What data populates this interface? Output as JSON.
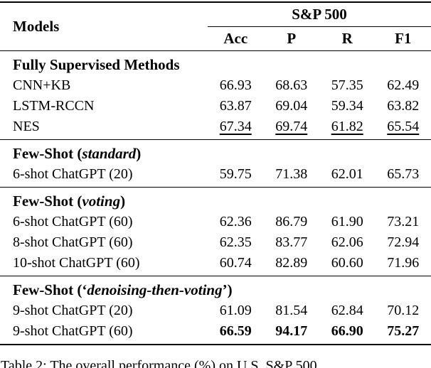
{
  "colors": {
    "background": "#ffffff",
    "text": "#000000",
    "rule": "#000000"
  },
  "table": {
    "models_header": "Models",
    "group_header": "S&P 500",
    "sub_headers": [
      "Acc",
      "P",
      "R",
      "F1"
    ],
    "sections": [
      {
        "title": {
          "prefix": "Fully Supervised Methods",
          "italic": "",
          "suffix": ""
        },
        "rows": [
          {
            "model": "CNN+KB",
            "values": [
              "66.93",
              "68.63",
              "57.35",
              "62.49"
            ]
          },
          {
            "model": "LSTM-RCCN",
            "values": [
              "63.87",
              "69.04",
              "59.34",
              "63.82"
            ]
          },
          {
            "model": "NES",
            "values": [
              "67.34",
              "69.74",
              "61.82",
              "65.54"
            ],
            "emphasis": "underline"
          }
        ]
      },
      {
        "title": {
          "prefix": "Few-Shot (",
          "italic": "standard",
          "suffix": ")"
        },
        "rows": [
          {
            "model": "6-shot ChatGPT (20)",
            "values": [
              "59.75",
              "71.38",
              "62.01",
              "65.73"
            ]
          }
        ]
      },
      {
        "title": {
          "prefix": "Few-Shot (",
          "italic": "voting",
          "suffix": ")"
        },
        "rows": [
          {
            "model": "6-shot ChatGPT (60)",
            "values": [
              "62.36",
              "86.79",
              "61.90",
              "73.21"
            ]
          },
          {
            "model": "8-shot ChatGPT (60)",
            "values": [
              "62.35",
              "83.77",
              "62.06",
              "72.94"
            ]
          },
          {
            "model": "10-shot ChatGPT (60)",
            "values": [
              "60.74",
              "82.89",
              "60.60",
              "71.96"
            ]
          }
        ]
      },
      {
        "title": {
          "prefix": "Few-Shot (‘",
          "italic": "denoising-then-voting",
          "suffix": "’)"
        },
        "rows": [
          {
            "model": "9-shot ChatGPT (20)",
            "values": [
              "61.09",
              "81.54",
              "62.84",
              "70.12"
            ]
          },
          {
            "model": "9-shot ChatGPT (60)",
            "values": [
              "66.59",
              "94.17",
              "66.90",
              "75.27"
            ],
            "emphasis": "bold"
          }
        ]
      }
    ]
  },
  "caption": "Table 2: The overall performance (%) on U.S. S&P 500"
}
